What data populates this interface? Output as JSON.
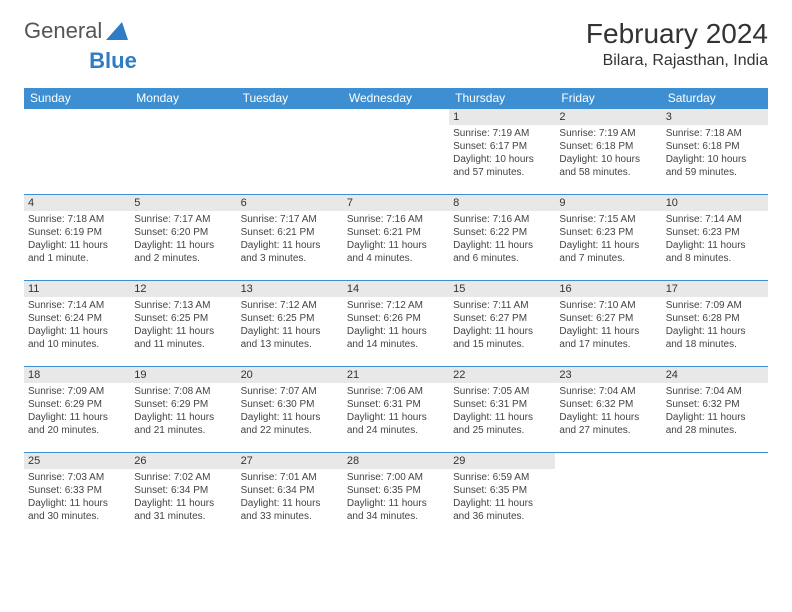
{
  "logo": {
    "text1": "General",
    "text2": "Blue"
  },
  "title": "February 2024",
  "location": "Bilara, Rajasthan, India",
  "colors": {
    "header_bg": "#3d8fd1",
    "header_text": "#ffffff",
    "daynum_bg": "#e8e8e8",
    "border": "#3d8fd1",
    "logo_blue": "#2f7dc4"
  },
  "weekdays": [
    "Sunday",
    "Monday",
    "Tuesday",
    "Wednesday",
    "Thursday",
    "Friday",
    "Saturday"
  ],
  "weeks": [
    [
      null,
      null,
      null,
      null,
      {
        "n": "1",
        "sr": "Sunrise: 7:19 AM",
        "ss": "Sunset: 6:17 PM",
        "dl": "Daylight: 10 hours and 57 minutes."
      },
      {
        "n": "2",
        "sr": "Sunrise: 7:19 AM",
        "ss": "Sunset: 6:18 PM",
        "dl": "Daylight: 10 hours and 58 minutes."
      },
      {
        "n": "3",
        "sr": "Sunrise: 7:18 AM",
        "ss": "Sunset: 6:18 PM",
        "dl": "Daylight: 10 hours and 59 minutes."
      }
    ],
    [
      {
        "n": "4",
        "sr": "Sunrise: 7:18 AM",
        "ss": "Sunset: 6:19 PM",
        "dl": "Daylight: 11 hours and 1 minute."
      },
      {
        "n": "5",
        "sr": "Sunrise: 7:17 AM",
        "ss": "Sunset: 6:20 PM",
        "dl": "Daylight: 11 hours and 2 minutes."
      },
      {
        "n": "6",
        "sr": "Sunrise: 7:17 AM",
        "ss": "Sunset: 6:21 PM",
        "dl": "Daylight: 11 hours and 3 minutes."
      },
      {
        "n": "7",
        "sr": "Sunrise: 7:16 AM",
        "ss": "Sunset: 6:21 PM",
        "dl": "Daylight: 11 hours and 4 minutes."
      },
      {
        "n": "8",
        "sr": "Sunrise: 7:16 AM",
        "ss": "Sunset: 6:22 PM",
        "dl": "Daylight: 11 hours and 6 minutes."
      },
      {
        "n": "9",
        "sr": "Sunrise: 7:15 AM",
        "ss": "Sunset: 6:23 PM",
        "dl": "Daylight: 11 hours and 7 minutes."
      },
      {
        "n": "10",
        "sr": "Sunrise: 7:14 AM",
        "ss": "Sunset: 6:23 PM",
        "dl": "Daylight: 11 hours and 8 minutes."
      }
    ],
    [
      {
        "n": "11",
        "sr": "Sunrise: 7:14 AM",
        "ss": "Sunset: 6:24 PM",
        "dl": "Daylight: 11 hours and 10 minutes."
      },
      {
        "n": "12",
        "sr": "Sunrise: 7:13 AM",
        "ss": "Sunset: 6:25 PM",
        "dl": "Daylight: 11 hours and 11 minutes."
      },
      {
        "n": "13",
        "sr": "Sunrise: 7:12 AM",
        "ss": "Sunset: 6:25 PM",
        "dl": "Daylight: 11 hours and 13 minutes."
      },
      {
        "n": "14",
        "sr": "Sunrise: 7:12 AM",
        "ss": "Sunset: 6:26 PM",
        "dl": "Daylight: 11 hours and 14 minutes."
      },
      {
        "n": "15",
        "sr": "Sunrise: 7:11 AM",
        "ss": "Sunset: 6:27 PM",
        "dl": "Daylight: 11 hours and 15 minutes."
      },
      {
        "n": "16",
        "sr": "Sunrise: 7:10 AM",
        "ss": "Sunset: 6:27 PM",
        "dl": "Daylight: 11 hours and 17 minutes."
      },
      {
        "n": "17",
        "sr": "Sunrise: 7:09 AM",
        "ss": "Sunset: 6:28 PM",
        "dl": "Daylight: 11 hours and 18 minutes."
      }
    ],
    [
      {
        "n": "18",
        "sr": "Sunrise: 7:09 AM",
        "ss": "Sunset: 6:29 PM",
        "dl": "Daylight: 11 hours and 20 minutes."
      },
      {
        "n": "19",
        "sr": "Sunrise: 7:08 AM",
        "ss": "Sunset: 6:29 PM",
        "dl": "Daylight: 11 hours and 21 minutes."
      },
      {
        "n": "20",
        "sr": "Sunrise: 7:07 AM",
        "ss": "Sunset: 6:30 PM",
        "dl": "Daylight: 11 hours and 22 minutes."
      },
      {
        "n": "21",
        "sr": "Sunrise: 7:06 AM",
        "ss": "Sunset: 6:31 PM",
        "dl": "Daylight: 11 hours and 24 minutes."
      },
      {
        "n": "22",
        "sr": "Sunrise: 7:05 AM",
        "ss": "Sunset: 6:31 PM",
        "dl": "Daylight: 11 hours and 25 minutes."
      },
      {
        "n": "23",
        "sr": "Sunrise: 7:04 AM",
        "ss": "Sunset: 6:32 PM",
        "dl": "Daylight: 11 hours and 27 minutes."
      },
      {
        "n": "24",
        "sr": "Sunrise: 7:04 AM",
        "ss": "Sunset: 6:32 PM",
        "dl": "Daylight: 11 hours and 28 minutes."
      }
    ],
    [
      {
        "n": "25",
        "sr": "Sunrise: 7:03 AM",
        "ss": "Sunset: 6:33 PM",
        "dl": "Daylight: 11 hours and 30 minutes."
      },
      {
        "n": "26",
        "sr": "Sunrise: 7:02 AM",
        "ss": "Sunset: 6:34 PM",
        "dl": "Daylight: 11 hours and 31 minutes."
      },
      {
        "n": "27",
        "sr": "Sunrise: 7:01 AM",
        "ss": "Sunset: 6:34 PM",
        "dl": "Daylight: 11 hours and 33 minutes."
      },
      {
        "n": "28",
        "sr": "Sunrise: 7:00 AM",
        "ss": "Sunset: 6:35 PM",
        "dl": "Daylight: 11 hours and 34 minutes."
      },
      {
        "n": "29",
        "sr": "Sunrise: 6:59 AM",
        "ss": "Sunset: 6:35 PM",
        "dl": "Daylight: 11 hours and 36 minutes."
      },
      null,
      null
    ]
  ]
}
